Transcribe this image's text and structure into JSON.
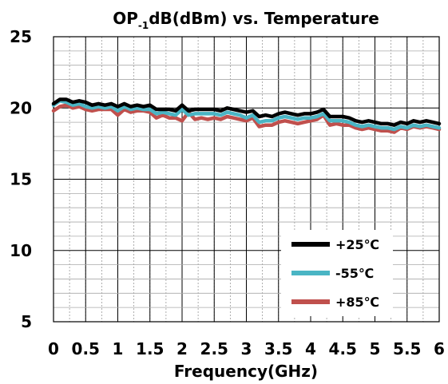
{
  "chart_data": {
    "type": "line",
    "title_main": "OP",
    "title_sub": "-1",
    "title_rest": "dB(dBm)  vs. Temperature",
    "xlabel": "Frequency(GHz)",
    "ylabel": "",
    "xlim": [
      0,
      6
    ],
    "ylim": [
      5,
      25
    ],
    "xticks": [
      "0",
      "0.5",
      "1",
      "1.5",
      "2",
      "2.5",
      "3",
      "3.5",
      "4",
      "4.5",
      "5",
      "5.5",
      "6"
    ],
    "yticks": [
      "5",
      "10",
      "15",
      "20",
      "25"
    ],
    "grid": true,
    "legend_position": "bottom-right",
    "x": [
      0,
      0.1,
      0.2,
      0.3,
      0.4,
      0.5,
      0.6,
      0.7,
      0.8,
      0.9,
      1.0,
      1.1,
      1.2,
      1.3,
      1.4,
      1.5,
      1.6,
      1.7,
      1.8,
      1.9,
      2.0,
      2.1,
      2.2,
      2.3,
      2.4,
      2.5,
      2.6,
      2.7,
      2.8,
      2.9,
      3.0,
      3.1,
      3.2,
      3.3,
      3.4,
      3.5,
      3.6,
      3.7,
      3.8,
      3.9,
      4.0,
      4.1,
      4.2,
      4.3,
      4.4,
      4.5,
      4.6,
      4.7,
      4.8,
      4.9,
      5.0,
      5.1,
      5.2,
      5.3,
      5.4,
      5.5,
      5.6,
      5.7,
      5.8,
      5.9,
      6.0
    ],
    "series": [
      {
        "name": "+25℃",
        "color": "#000000",
        "values": [
          20.3,
          20.6,
          20.6,
          20.4,
          20.5,
          20.4,
          20.2,
          20.3,
          20.2,
          20.3,
          20.1,
          20.3,
          20.1,
          20.2,
          20.1,
          20.2,
          19.9,
          19.9,
          19.9,
          19.8,
          20.2,
          19.8,
          19.9,
          19.9,
          19.9,
          19.9,
          19.8,
          20.0,
          19.9,
          19.8,
          19.7,
          19.8,
          19.4,
          19.5,
          19.4,
          19.6,
          19.7,
          19.6,
          19.5,
          19.6,
          19.6,
          19.7,
          19.9,
          19.4,
          19.4,
          19.4,
          19.3,
          19.1,
          19.0,
          19.1,
          19.0,
          18.9,
          18.9,
          18.8,
          19.0,
          18.9,
          19.1,
          19.0,
          19.1,
          19.0,
          18.9
        ]
      },
      {
        "name": "-55℃",
        "color": "#4ab5c4",
        "values": [
          20.2,
          20.5,
          20.4,
          20.2,
          20.3,
          20.1,
          20.0,
          20.1,
          20.0,
          20.1,
          19.8,
          20.1,
          19.9,
          20.0,
          19.9,
          19.9,
          19.6,
          19.7,
          19.6,
          19.5,
          19.9,
          19.5,
          19.6,
          19.6,
          19.6,
          19.6,
          19.5,
          19.7,
          19.6,
          19.5,
          19.3,
          19.5,
          19.0,
          19.1,
          19.1,
          19.3,
          19.4,
          19.3,
          19.2,
          19.3,
          19.3,
          19.4,
          19.6,
          19.1,
          19.1,
          19.1,
          19.0,
          18.8,
          18.7,
          18.8,
          18.7,
          18.6,
          18.6,
          18.5,
          18.7,
          18.6,
          18.8,
          18.7,
          18.8,
          18.7,
          18.6
        ]
      },
      {
        "name": "+85℃",
        "color": "#c0504d",
        "values": [
          19.8,
          20.1,
          20.2,
          20.0,
          20.1,
          19.9,
          19.8,
          19.9,
          19.9,
          19.9,
          19.5,
          19.9,
          19.7,
          19.8,
          19.8,
          19.7,
          19.3,
          19.5,
          19.3,
          19.3,
          19.1,
          19.7,
          19.2,
          19.3,
          19.2,
          19.3,
          19.2,
          19.4,
          19.3,
          19.2,
          19.1,
          19.3,
          18.7,
          18.8,
          18.8,
          19.0,
          19.1,
          19.0,
          18.9,
          19.0,
          19.1,
          19.2,
          19.5,
          18.8,
          18.9,
          18.8,
          18.8,
          18.6,
          18.5,
          18.6,
          18.5,
          18.4,
          18.4,
          18.3,
          18.6,
          18.5,
          18.7,
          18.6,
          18.7,
          18.6,
          18.5
        ]
      }
    ]
  }
}
